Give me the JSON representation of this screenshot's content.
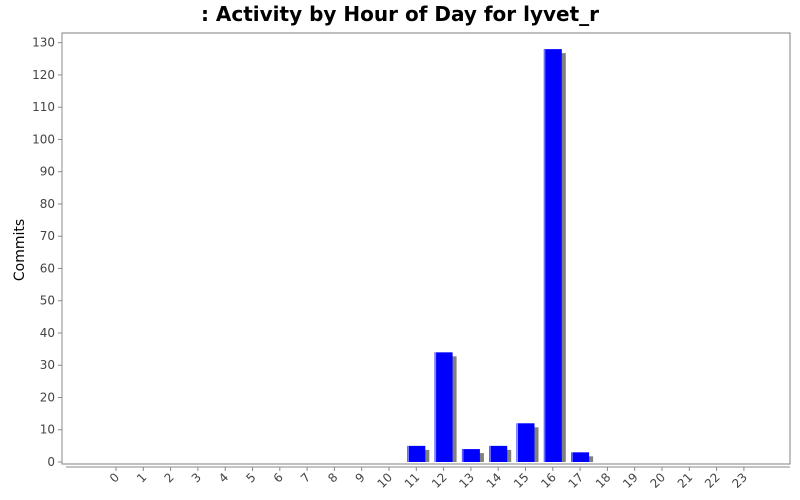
{
  "chart_data": {
    "type": "bar",
    "title": ": Activity by Hour of Day for lyvet_r",
    "xlabel": "",
    "ylabel": "Commits",
    "categories": [
      "0",
      "1",
      "2",
      "3",
      "4",
      "5",
      "6",
      "7",
      "8",
      "9",
      "10",
      "11",
      "12",
      "13",
      "14",
      "15",
      "16",
      "17",
      "18",
      "19",
      "20",
      "21",
      "22",
      "23"
    ],
    "values": [
      0,
      0,
      0,
      0,
      0,
      0,
      0,
      0,
      0,
      0,
      0,
      5,
      34,
      4,
      5,
      12,
      128,
      3,
      0,
      0,
      0,
      0,
      0,
      0
    ],
    "ylim": [
      0,
      133
    ],
    "yticks": [
      0,
      10,
      20,
      30,
      40,
      50,
      60,
      70,
      80,
      90,
      100,
      110,
      120,
      130
    ],
    "grid": false,
    "legend": "none",
    "colors": {
      "bar": "#0000ff",
      "shadow": "#808080",
      "axis": "#888888",
      "frame": "#808080"
    }
  }
}
